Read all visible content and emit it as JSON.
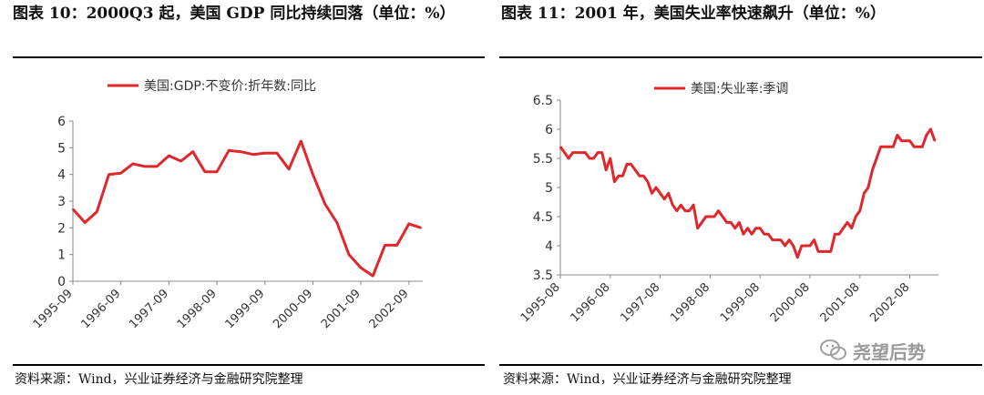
{
  "left": {
    "title": "图表 10：2000Q3 起，美国 GDP 同比持续回落（单位：%）",
    "source": "资料来源：Wind，兴业证券经济与金融研究院整理"
  },
  "right": {
    "title": "图表 11：2001 年，美国失业率快速飙升（单位：%）",
    "source": "资料来源：Wind，兴业证券经济与金融研究院整理"
  },
  "watermark": {
    "text": "尧望后势"
  },
  "colors": {
    "series": "#e0272b",
    "axis": "#888888",
    "text": "#333333"
  },
  "chart_data": [
    {
      "type": "line",
      "title": "美国 GDP 同比",
      "xlabel": "",
      "ylabel": "",
      "ylim": [
        0,
        6
      ],
      "yticks": [
        "0",
        "1",
        "2",
        "3",
        "4",
        "5",
        "6"
      ],
      "xtick_labels": [
        "1995-09",
        "1996-09",
        "1997-09",
        "1998-09",
        "1999-09",
        "2000-09",
        "2001-09",
        "2002-09"
      ],
      "series": [
        {
          "name": "美国:GDP:不变价:折年数:同比",
          "x": [
            "1995Q3",
            "1995Q4",
            "1996Q1",
            "1996Q2",
            "1996Q3",
            "1996Q4",
            "1997Q1",
            "1997Q2",
            "1997Q3",
            "1997Q4",
            "1998Q1",
            "1998Q2",
            "1998Q3",
            "1998Q4",
            "1999Q1",
            "1999Q2",
            "1999Q3",
            "1999Q4",
            "2000Q1",
            "2000Q2",
            "2000Q3",
            "2000Q4",
            "2001Q1",
            "2001Q2",
            "2001Q3",
            "2001Q4",
            "2002Q1",
            "2002Q2",
            "2002Q3",
            "2002Q4"
          ],
          "values": [
            2.7,
            2.2,
            2.6,
            4.0,
            4.05,
            4.4,
            4.3,
            4.3,
            4.7,
            4.5,
            4.85,
            4.1,
            4.1,
            4.9,
            4.85,
            4.75,
            4.8,
            4.8,
            4.2,
            5.25,
            4.0,
            2.9,
            2.2,
            1.0,
            0.5,
            0.2,
            1.35,
            1.35,
            2.15,
            2.0
          ]
        }
      ]
    },
    {
      "type": "line",
      "title": "美国失业率",
      "xlabel": "",
      "ylabel": "",
      "ylim": [
        3.5,
        6.5
      ],
      "yticks": [
        "3.5",
        "4",
        "4.5",
        "5",
        "5.5",
        "6",
        "6.5"
      ],
      "xtick_labels": [
        "1995-08",
        "1996-08",
        "1997-08",
        "1998-08",
        "1999-08",
        "2000-08",
        "2001-08",
        "2002-08"
      ],
      "x_range_months": "1995-08 to 2002-12",
      "series": [
        {
          "name": "美国:失业率:季调",
          "values": [
            5.7,
            5.6,
            5.5,
            5.6,
            5.6,
            5.6,
            5.6,
            5.5,
            5.5,
            5.6,
            5.6,
            5.3,
            5.5,
            5.1,
            5.2,
            5.2,
            5.4,
            5.4,
            5.3,
            5.2,
            5.2,
            5.1,
            4.9,
            5.0,
            4.9,
            4.8,
            4.9,
            4.7,
            4.6,
            4.7,
            4.6,
            4.6,
            4.7,
            4.3,
            4.4,
            4.5,
            4.5,
            4.5,
            4.6,
            4.5,
            4.4,
            4.4,
            4.3,
            4.4,
            4.2,
            4.3,
            4.2,
            4.3,
            4.3,
            4.2,
            4.2,
            4.1,
            4.1,
            4.1,
            4.0,
            4.1,
            4.0,
            3.8,
            4.0,
            4.0,
            4.0,
            4.1,
            3.9,
            3.9,
            3.9,
            3.9,
            4.2,
            4.2,
            4.3,
            4.4,
            4.3,
            4.5,
            4.6,
            4.9,
            5.0,
            5.3,
            5.5,
            5.7,
            5.7,
            5.7,
            5.7,
            5.9,
            5.8,
            5.8,
            5.8,
            5.7,
            5.7,
            5.7,
            5.9,
            6.0,
            5.8
          ]
        }
      ]
    }
  ]
}
